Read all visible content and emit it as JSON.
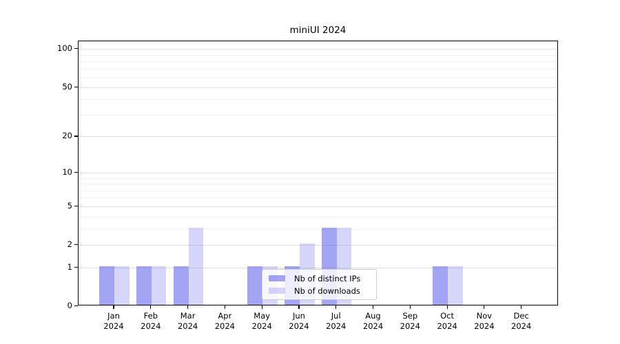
{
  "chart_data": {
    "type": "bar",
    "title": "miniUI 2024",
    "xlabel": "",
    "ylabel": "",
    "year_label": "2024",
    "categories": [
      "Jan",
      "Feb",
      "Mar",
      "Apr",
      "May",
      "Jun",
      "Jul",
      "Aug",
      "Sep",
      "Oct",
      "Nov",
      "Dec"
    ],
    "series": [
      {
        "name": "Nb of distinct IPs",
        "color": "rgba(90,90,235,0.55)",
        "values": [
          1,
          1,
          1,
          0,
          1,
          1,
          3,
          0,
          0,
          1,
          0,
          0
        ]
      },
      {
        "name": "Nb of downloads",
        "color": "rgba(90,90,235,0.25)",
        "values": [
          1,
          1,
          3,
          0,
          1,
          2,
          3,
          0,
          0,
          1,
          0,
          0
        ]
      }
    ],
    "yscale": "log1p",
    "ylim": [
      0,
      115
    ],
    "yticks": [
      0,
      1,
      2,
      5,
      10,
      20,
      50,
      100
    ],
    "yticks_minor": [
      3,
      4,
      6,
      7,
      8,
      9,
      30,
      40,
      60,
      70,
      80,
      90
    ],
    "grid": "horizontal-on",
    "legend_position": "inside-bottom-center",
    "colors": {
      "grid_major": "#e0e0e0",
      "grid_minor": "#f2f2f2",
      "spine": "#000000",
      "background": "#ffffff"
    }
  }
}
